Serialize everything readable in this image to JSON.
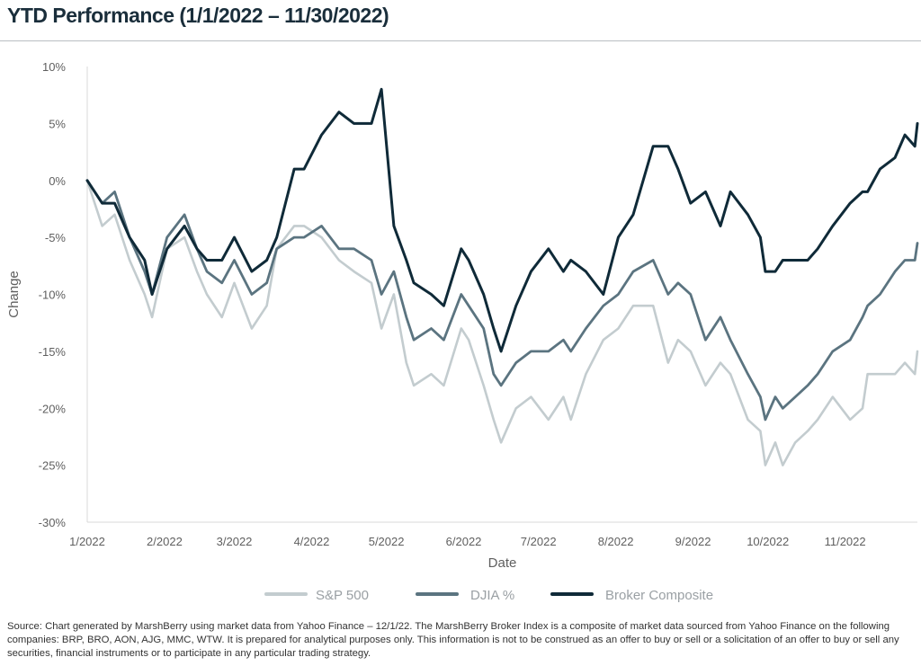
{
  "title": "YTD Performance (1/1/2022 – 11/30/2022)",
  "source_note": "Source: Chart generated by MarshBerry using market data from Yahoo Finance – 12/1/22. The MarshBerry Broker Index is a composite of market data sourced from Yahoo Finance on the following companies: BRP, BRO, AON, AJG, MMC, WTW. It is prepared for analytical purposes only. This information is not to be construed as an offer to buy or sell or a solicitation of an offer to buy or sell any securities, financial instruments or to participate in any particular trading strategy.",
  "colors": {
    "sp500": "#c3cccf",
    "djia": "#5b7480",
    "broker": "#0f2a38",
    "axis": "#d9d9d9",
    "text": "#5f5f5f"
  },
  "chart_data": {
    "type": "line",
    "title": "YTD Performance (1/1/2022 – 11/30/2022)",
    "xlabel": "Date",
    "ylabel": "Change",
    "x_tick_labels": [
      "1/2022",
      "2/2022",
      "3/2022",
      "4/2022",
      "5/2022",
      "6/2022",
      "7/2022",
      "8/2022",
      "9/2022",
      "10/2022",
      "11/2022"
    ],
    "y_tick_labels": [
      "10%",
      "5%",
      "0%",
      "-5%",
      "-10%",
      "-15%",
      "-20%",
      "-25%",
      "-30%"
    ],
    "ylim": [
      -30,
      10
    ],
    "xlim": [
      "2022-01-01",
      "2022-11-30"
    ],
    "grid": false,
    "legend_position": "bottom",
    "series": [
      {
        "name": "S&P 500",
        "color": "#c3cccf",
        "x": [
          "2022-01-01",
          "2022-01-04",
          "2022-01-07",
          "2022-01-12",
          "2022-01-18",
          "2022-01-24",
          "2022-01-27",
          "2022-02-02",
          "2022-02-09",
          "2022-02-14",
          "2022-02-18",
          "2022-02-24",
          "2022-03-01",
          "2022-03-08",
          "2022-03-14",
          "2022-03-18",
          "2022-03-25",
          "2022-03-29",
          "2022-04-05",
          "2022-04-12",
          "2022-04-18",
          "2022-04-25",
          "2022-04-29",
          "2022-05-04",
          "2022-05-09",
          "2022-05-12",
          "2022-05-19",
          "2022-05-24",
          "2022-05-31",
          "2022-06-03",
          "2022-06-09",
          "2022-06-13",
          "2022-06-16",
          "2022-06-22",
          "2022-06-28",
          "2022-07-05",
          "2022-07-11",
          "2022-07-14",
          "2022-07-20",
          "2022-07-27",
          "2022-08-02",
          "2022-08-08",
          "2022-08-16",
          "2022-08-22",
          "2022-08-26",
          "2022-08-31",
          "2022-09-06",
          "2022-09-12",
          "2022-09-16",
          "2022-09-23",
          "2022-09-28",
          "2022-09-30",
          "2022-10-04",
          "2022-10-07",
          "2022-10-12",
          "2022-10-17",
          "2022-10-21",
          "2022-10-27",
          "2022-11-03",
          "2022-11-08",
          "2022-11-10",
          "2022-11-15",
          "2022-11-21",
          "2022-11-25",
          "2022-11-29",
          "2022-11-30"
        ],
        "y": [
          0,
          -2,
          -4,
          -3,
          -7,
          -10,
          -12,
          -6,
          -5,
          -8,
          -10,
          -12,
          -9,
          -13,
          -11,
          -6,
          -4,
          -4,
          -5,
          -7,
          -8,
          -9,
          -13,
          -10,
          -16,
          -18,
          -17,
          -18,
          -13,
          -14,
          -18,
          -21,
          -23,
          -20,
          -19,
          -21,
          -19,
          -21,
          -17,
          -14,
          -13,
          -11,
          -11,
          -16,
          -14,
          -15,
          -18,
          -16,
          -17,
          -21,
          -22,
          -25,
          -23,
          -25,
          -23,
          -22,
          -21,
          -19,
          -21,
          -20,
          -17,
          -17,
          -17,
          -16,
          -17,
          -15
        ]
      },
      {
        "name": "DJIA %",
        "color": "#5b7480",
        "x": [
          "2022-01-01",
          "2022-01-04",
          "2022-01-07",
          "2022-01-12",
          "2022-01-18",
          "2022-01-24",
          "2022-01-27",
          "2022-02-02",
          "2022-02-09",
          "2022-02-14",
          "2022-02-18",
          "2022-02-24",
          "2022-03-01",
          "2022-03-08",
          "2022-03-14",
          "2022-03-18",
          "2022-03-25",
          "2022-03-29",
          "2022-04-05",
          "2022-04-12",
          "2022-04-18",
          "2022-04-25",
          "2022-04-29",
          "2022-05-04",
          "2022-05-09",
          "2022-05-12",
          "2022-05-19",
          "2022-05-24",
          "2022-05-31",
          "2022-06-03",
          "2022-06-09",
          "2022-06-13",
          "2022-06-16",
          "2022-06-22",
          "2022-06-28",
          "2022-07-05",
          "2022-07-11",
          "2022-07-14",
          "2022-07-20",
          "2022-07-27",
          "2022-08-02",
          "2022-08-08",
          "2022-08-16",
          "2022-08-22",
          "2022-08-26",
          "2022-08-31",
          "2022-09-06",
          "2022-09-12",
          "2022-09-16",
          "2022-09-23",
          "2022-09-28",
          "2022-09-30",
          "2022-10-04",
          "2022-10-07",
          "2022-10-12",
          "2022-10-17",
          "2022-10-21",
          "2022-10-27",
          "2022-11-03",
          "2022-11-08",
          "2022-11-10",
          "2022-11-15",
          "2022-11-21",
          "2022-11-25",
          "2022-11-29",
          "2022-11-30"
        ],
        "y": [
          0,
          -1,
          -2,
          -1,
          -5,
          -8,
          -10,
          -5,
          -3,
          -6,
          -8,
          -9,
          -7,
          -10,
          -9,
          -6,
          -5,
          -5,
          -4,
          -6,
          -6,
          -7,
          -10,
          -8,
          -12,
          -14,
          -13,
          -14,
          -10,
          -11,
          -13,
          -17,
          -18,
          -16,
          -15,
          -15,
          -14,
          -15,
          -13,
          -11,
          -10,
          -8,
          -7,
          -10,
          -9,
          -10,
          -14,
          -12,
          -14,
          -17,
          -19,
          -21,
          -19,
          -20,
          -19,
          -18,
          -17,
          -15,
          -14,
          -12,
          -11,
          -10,
          -8,
          -7,
          -7,
          -5.5
        ]
      },
      {
        "name": "Broker Composite",
        "color": "#0f2a38",
        "x": [
          "2022-01-01",
          "2022-01-04",
          "2022-01-07",
          "2022-01-12",
          "2022-01-18",
          "2022-01-24",
          "2022-01-27",
          "2022-02-02",
          "2022-02-09",
          "2022-02-14",
          "2022-02-18",
          "2022-02-24",
          "2022-03-01",
          "2022-03-08",
          "2022-03-14",
          "2022-03-18",
          "2022-03-25",
          "2022-03-29",
          "2022-04-05",
          "2022-04-12",
          "2022-04-18",
          "2022-04-25",
          "2022-04-29",
          "2022-05-04",
          "2022-05-09",
          "2022-05-12",
          "2022-05-19",
          "2022-05-24",
          "2022-05-31",
          "2022-06-03",
          "2022-06-09",
          "2022-06-13",
          "2022-06-16",
          "2022-06-22",
          "2022-06-28",
          "2022-07-05",
          "2022-07-11",
          "2022-07-14",
          "2022-07-20",
          "2022-07-27",
          "2022-08-02",
          "2022-08-08",
          "2022-08-16",
          "2022-08-22",
          "2022-08-26",
          "2022-08-31",
          "2022-09-06",
          "2022-09-12",
          "2022-09-16",
          "2022-09-23",
          "2022-09-28",
          "2022-09-30",
          "2022-10-04",
          "2022-10-07",
          "2022-10-12",
          "2022-10-17",
          "2022-10-21",
          "2022-10-27",
          "2022-11-03",
          "2022-11-08",
          "2022-11-10",
          "2022-11-15",
          "2022-11-21",
          "2022-11-25",
          "2022-11-29",
          "2022-11-30"
        ],
        "y": [
          0,
          -1,
          -2,
          -2,
          -5,
          -7,
          -10,
          -6,
          -4,
          -6,
          -7,
          -7,
          -5,
          -8,
          -7,
          -5,
          1,
          1,
          4,
          6,
          5,
          5,
          8,
          -4,
          -7,
          -9,
          -10,
          -11,
          -6,
          -7,
          -10,
          -13,
          -15,
          -11,
          -8,
          -6,
          -8,
          -7,
          -8,
          -10,
          -5,
          -3,
          3,
          3,
          1,
          -2,
          -1,
          -4,
          -1,
          -3,
          -5,
          -8,
          -8,
          -7,
          -7,
          -7,
          -6,
          -4,
          -2,
          -1,
          -1,
          1,
          2,
          4,
          3,
          5
        ]
      }
    ]
  }
}
